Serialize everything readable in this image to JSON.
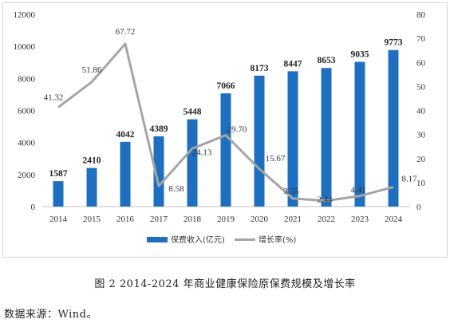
{
  "caption": "图 2  2014-2024 年商业健康保险原保费规模及增长率",
  "source": "数据来源：Wind。",
  "chart_data": {
    "type": "bar+line",
    "categories": [
      "2014",
      "2015",
      "2016",
      "2017",
      "2018",
      "2019",
      "2020",
      "2021",
      "2022",
      "2023",
      "2024"
    ],
    "series": [
      {
        "name": "保费收入(亿元)",
        "type": "bar",
        "axis": "left",
        "values": [
          1587,
          2410,
          4042,
          4389,
          5448,
          7066,
          8173,
          8447,
          8653,
          9035,
          9773
        ],
        "labels": [
          "1587",
          "2410",
          "4042",
          "4389",
          "5448",
          "7066",
          "8173",
          "8447",
          "8653",
          "9035",
          "9773"
        ],
        "color": "#1f6fc0"
      },
      {
        "name": "增长率(%)",
        "type": "line",
        "axis": "right",
        "values": [
          41.32,
          51.86,
          67.72,
          8.58,
          24.13,
          29.7,
          15.67,
          3.35,
          2.44,
          4.41,
          8.17
        ],
        "labels": [
          "41.32",
          "51.86",
          "67.72",
          "8.58",
          "24.13",
          "29.70",
          "15.67",
          "3.35",
          "2.44",
          "4.41",
          "8.17"
        ],
        "color": "#a5a5a5"
      }
    ],
    "y_left": {
      "ylim": [
        0,
        12000
      ],
      "ticks": [
        "0",
        "2000",
        "4000",
        "6000",
        "8000",
        "10000",
        "12000"
      ]
    },
    "y_right": {
      "ylim": [
        0,
        80
      ],
      "ticks": [
        "0",
        "10",
        "20",
        "30",
        "40",
        "50",
        "60",
        "70",
        "80"
      ]
    },
    "grid": false,
    "legend": "bottom-center"
  }
}
